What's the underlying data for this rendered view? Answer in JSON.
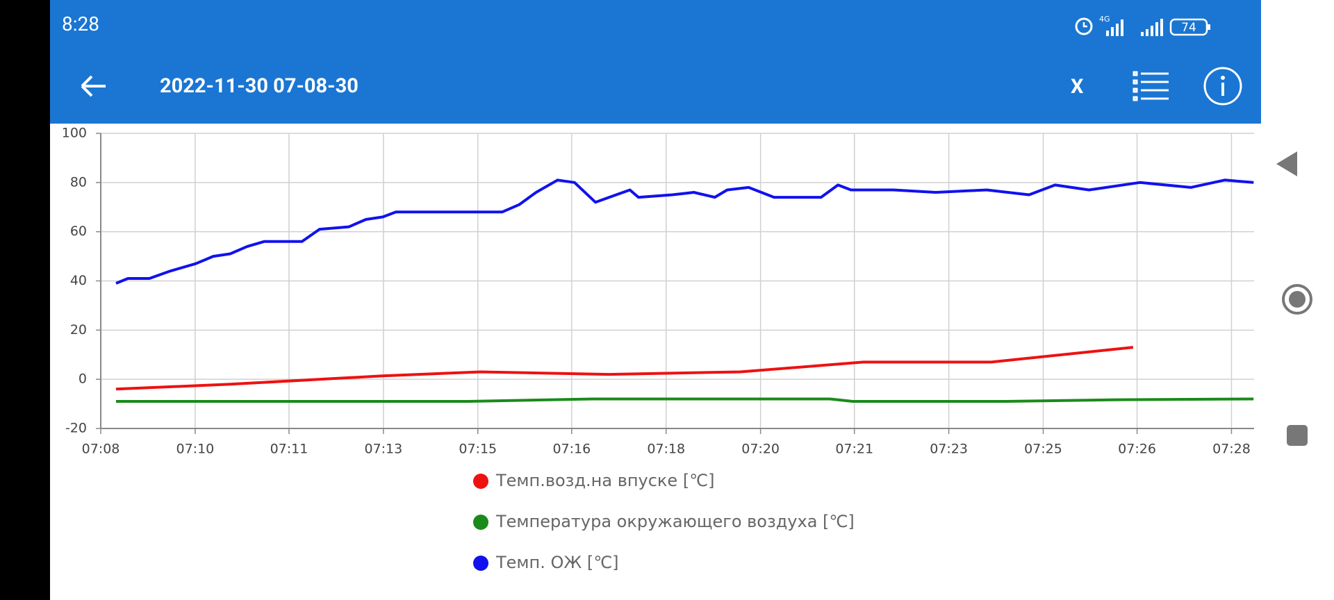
{
  "status_bar": {
    "time": "8:28",
    "network": "4G",
    "battery": "74"
  },
  "app_bar": {
    "title": "2022-11-30 07-08-30",
    "close": "X"
  },
  "chart_data": {
    "type": "line",
    "xlim": [
      428,
      448.4
    ],
    "xticks": [
      {
        "value": 428,
        "label": "07:08"
      },
      {
        "value": 429.67,
        "label": "07:10"
      },
      {
        "value": 431.33,
        "label": "07:11"
      },
      {
        "value": 433,
        "label": "07:13"
      },
      {
        "value": 434.67,
        "label": "07:15"
      },
      {
        "value": 436.33,
        "label": "07:16"
      },
      {
        "value": 438,
        "label": "07:18"
      },
      {
        "value": 439.67,
        "label": "07:20"
      },
      {
        "value": 441.33,
        "label": "07:21"
      },
      {
        "value": 443,
        "label": "07:23"
      },
      {
        "value": 444.67,
        "label": "07:25"
      },
      {
        "value": 446.33,
        "label": "07:26"
      },
      {
        "value": 448,
        "label": "07:28"
      }
    ],
    "ylim": [
      -20,
      100
    ],
    "yticks": [
      -20,
      0,
      20,
      40,
      60,
      80,
      100
    ],
    "grid": true,
    "series": [
      {
        "name": "Темп.возд.на впуске [℃]",
        "color": "#ee1111",
        "x": [
          428.27,
          430.29,
          432.99,
          434.72,
          436.98,
          439.31,
          441.49,
          443.75,
          446.26
        ],
        "values": [
          -4,
          -2,
          1.4,
          3,
          2,
          3,
          7,
          7,
          13
        ]
      },
      {
        "name": "Температура окружающего воздуха [℃]",
        "color": "#1a8a1a",
        "x": [
          428.27,
          430.5,
          434.5,
          436.7,
          439.0,
          440.9,
          441.3,
          444.0,
          446.0,
          448.39
        ],
        "values": [
          -9,
          -9,
          -9,
          -8,
          -8,
          -8,
          -9,
          -9,
          -8.3,
          -8
        ]
      },
      {
        "name": "Темп. ОЖ [℃]",
        "color": "#1111ee",
        "x": [
          428.27,
          428.48,
          428.86,
          429.23,
          429.68,
          429.99,
          430.29,
          430.59,
          430.89,
          431.56,
          431.87,
          432.39,
          432.69,
          432.99,
          433.22,
          435.1,
          435.4,
          435.7,
          436.08,
          436.38,
          436.75,
          437.36,
          437.51,
          438.11,
          438.49,
          438.86,
          439.08,
          439.46,
          439.91,
          440.74,
          441.04,
          441.27,
          442.02,
          442.77,
          443.67,
          444.42,
          444.88,
          445.48,
          446.38,
          447.28,
          447.88,
          448.39
        ],
        "values": [
          39,
          41,
          41,
          44,
          47,
          50,
          51,
          54,
          56,
          56,
          61,
          62,
          65,
          66,
          68,
          68,
          71,
          76,
          81,
          80,
          72,
          77,
          74,
          75,
          76,
          74,
          77,
          78,
          74,
          74,
          79,
          77,
          77,
          76,
          77,
          75,
          79,
          77,
          80,
          78,
          81,
          80
        ]
      }
    ]
  }
}
